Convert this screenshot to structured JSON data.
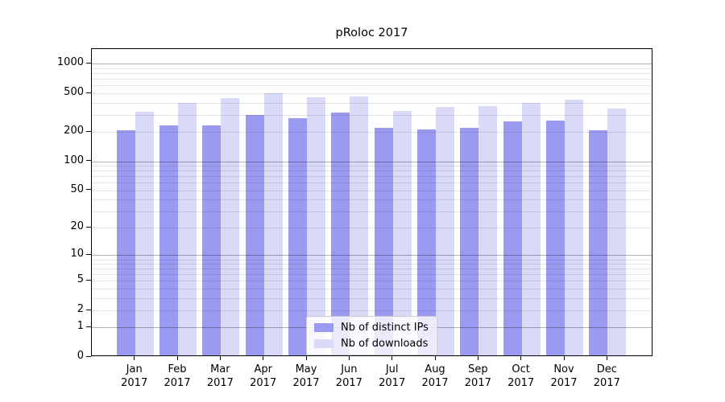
{
  "chart_data": {
    "type": "bar",
    "title": "pRoloc 2017",
    "categories": [
      "Jan 2017",
      "Feb 2017",
      "Mar 2017",
      "Apr 2017",
      "May 2017",
      "Jun 2017",
      "Jul 2017",
      "Aug 2017",
      "Sep 2017",
      "Oct 2017",
      "Nov 2017",
      "Dec 2017"
    ],
    "x_tick_months": [
      "Jan",
      "Feb",
      "Mar",
      "Apr",
      "May",
      "Jun",
      "Jul",
      "Aug",
      "Sep",
      "Oct",
      "Nov",
      "Dec"
    ],
    "x_tick_year": "2017",
    "series": [
      {
        "name": "Nb of distinct IPs",
        "color": "#9a9af0",
        "values": [
          202,
          224,
          226,
          287,
          266,
          306,
          214,
          206,
          212,
          249,
          251,
          202
        ]
      },
      {
        "name": "Nb of downloads",
        "color": "#d9d9f8",
        "values": [
          312,
          383,
          432,
          480,
          441,
          450,
          318,
          351,
          354,
          384,
          414,
          336
        ]
      }
    ],
    "y_ticks": [
      0,
      1,
      2,
      5,
      10,
      20,
      50,
      100,
      200,
      500,
      1000
    ],
    "y_scale": "log1p",
    "ylim": [
      0,
      1420
    ],
    "xlabel": "",
    "ylabel": "",
    "grid": "horizontal",
    "legend_position": "inside-bottom-center"
  },
  "colors": {
    "bar_distinct_ips": "#9a9af0",
    "bar_downloads": "#d9d9f8",
    "major_gridline": "#b3b3b3",
    "minor_gridline": "#e6e6e6",
    "axis_line": "#000000",
    "legend_border": "#cccccc",
    "background": "#ffffff"
  }
}
